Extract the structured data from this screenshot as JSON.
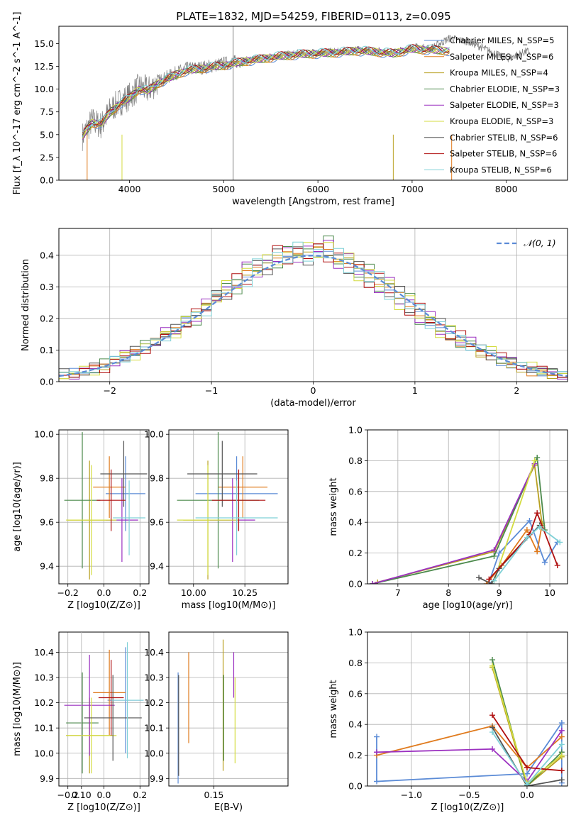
{
  "figure": {
    "title": "PLATE=1832, MJD=54259, FIBERID=0113, z=0.095"
  },
  "legend": {
    "labels": [
      "Chabrier MILES, N_SSP=5",
      "Salpeter MILES, N_SSP=6",
      "Kroupa MILES, N_SSP=4",
      "Chabrier ELODIE, N_SSP=3",
      "Salpeter ELODIE, N_SSP=3",
      "Kroupa ELODIE, N_SSP=3",
      "Chabrier STELIB, N_SSP=6",
      "Salpeter STELIB, N_SSP=6",
      "Kroupa STELIB, N_SSP=6"
    ],
    "colors": [
      "#5b8bd6",
      "#e07b1e",
      "#b8a020",
      "#4c8a4c",
      "#9b30c0",
      "#d4dc40",
      "#555555",
      "#b01010",
      "#7fd0d6"
    ],
    "placement": "upper-right"
  },
  "chart_data": [
    {
      "type": "line",
      "xlabel": "wavelength [Angstrom, rest frame]",
      "ylabel": "Flux [f_λ 10^-17 erg cm^-2 s^-1 A^-1]",
      "xlim": [
        3250,
        8650
      ],
      "ylim": [
        0,
        16.9
      ],
      "xticks": [
        "4000",
        "5000",
        "6000",
        "7000",
        "8000"
      ],
      "yticks": [
        "0.0",
        "2.5",
        "5.0",
        "7.5",
        "10.0",
        "12.5",
        "15.0"
      ],
      "grid": false,
      "series": [
        {
          "name": "data",
          "color": "#808080",
          "x": [
            3500,
            3600,
            3700,
            3800,
            3900,
            4000,
            4100,
            4200,
            4300,
            4400,
            4500,
            4600,
            4800,
            5000,
            5200,
            5400,
            5600,
            5800,
            6000,
            6200,
            6400,
            6600,
            6800,
            7000,
            7200,
            7400,
            7600,
            7800,
            8000,
            8200
          ],
          "y": [
            4.8,
            6.5,
            6.0,
            7.8,
            8.6,
            9.2,
            10.2,
            9.9,
            10.8,
            11.3,
            11.8,
            12.2,
            12.4,
            12.8,
            13.1,
            13.4,
            13.7,
            13.9,
            14.0,
            14.1,
            14.3,
            14.2,
            14.0,
            14.6,
            14.5,
            15.6,
            15.2,
            14.3,
            13.3,
            14.1
          ]
        },
        {
          "name": "model",
          "color": "#7fd0d6",
          "x": [
            3500,
            3600,
            3700,
            3800,
            3900,
            4000,
            4100,
            4200,
            4300,
            4400,
            4500,
            4600,
            4800,
            5000,
            5200,
            5400,
            5600,
            5800,
            6000,
            6200,
            6400,
            6600,
            6800,
            7000,
            7200,
            7400
          ],
          "y": [
            4.8,
            6.3,
            6.2,
            7.5,
            8.4,
            9.0,
            10.0,
            9.8,
            10.6,
            11.1,
            11.6,
            12.0,
            12.3,
            12.6,
            13.0,
            13.3,
            13.6,
            13.8,
            13.9,
            14.0,
            14.2,
            14.1,
            13.9,
            14.4,
            14.3,
            14.2
          ]
        }
      ]
    },
    {
      "type": "step",
      "xlabel": "(data-model)/error",
      "ylabel": "Normed distribution",
      "xlim": [
        -2.5,
        2.5
      ],
      "ylim": [
        0,
        0.485
      ],
      "xticks": [
        "−2",
        "−1",
        "0",
        "1",
        "2"
      ],
      "yticks": [
        "0.0",
        "0.1",
        "0.2",
        "0.3",
        "0.4"
      ],
      "grid": true,
      "legend": "𝒩(0, 1)",
      "bins": [
        -2.5,
        -2.4,
        -2.3,
        -2.2,
        -2.1,
        -2.0,
        -1.9,
        -1.8,
        -1.7,
        -1.6,
        -1.5,
        -1.4,
        -1.3,
        -1.2,
        -1.1,
        -1.0,
        -0.9,
        -0.8,
        -0.7,
        -0.6,
        -0.5,
        -0.4,
        -0.3,
        -0.2,
        -0.1,
        0.0,
        0.1,
        0.2,
        0.3,
        0.4,
        0.5,
        0.6,
        0.7,
        0.8,
        0.9,
        1.0,
        1.1,
        1.2,
        1.3,
        1.4,
        1.5,
        1.6,
        1.7,
        1.8,
        1.9,
        2.0,
        2.1,
        2.2,
        2.3,
        2.4,
        2.5
      ],
      "histograms": [
        [
          0.02,
          0.03,
          0.03,
          0.04,
          0.05,
          0.07,
          0.08,
          0.09,
          0.11,
          0.13,
          0.15,
          0.16,
          0.19,
          0.21,
          0.24,
          0.27,
          0.29,
          0.31,
          0.34,
          0.36,
          0.37,
          0.39,
          0.4,
          0.41,
          0.4,
          0.42,
          0.41,
          0.39,
          0.38,
          0.36,
          0.34,
          0.32,
          0.3,
          0.27,
          0.24,
          0.22,
          0.19,
          0.17,
          0.14,
          0.12,
          0.11,
          0.09,
          0.08,
          0.06,
          0.05,
          0.04,
          0.03,
          0.03,
          0.02,
          0.02
        ],
        [
          0.02,
          0.02,
          0.04,
          0.03,
          0.06,
          0.06,
          0.09,
          0.08,
          0.12,
          0.12,
          0.16,
          0.15,
          0.2,
          0.19,
          0.25,
          0.26,
          0.31,
          0.29,
          0.37,
          0.34,
          0.39,
          0.37,
          0.42,
          0.39,
          0.43,
          0.4,
          0.45,
          0.37,
          0.4,
          0.33,
          0.36,
          0.29,
          0.32,
          0.24,
          0.27,
          0.19,
          0.21,
          0.15,
          0.17,
          0.12,
          0.13,
          0.09,
          0.1,
          0.07,
          0.07,
          0.05,
          0.05,
          0.03,
          0.03,
          0.02
        ],
        [
          0.03,
          0.02,
          0.03,
          0.05,
          0.04,
          0.07,
          0.07,
          0.1,
          0.1,
          0.13,
          0.14,
          0.17,
          0.18,
          0.22,
          0.22,
          0.28,
          0.27,
          0.33,
          0.31,
          0.38,
          0.35,
          0.42,
          0.38,
          0.43,
          0.38,
          0.43,
          0.39,
          0.41,
          0.35,
          0.37,
          0.31,
          0.34,
          0.27,
          0.29,
          0.22,
          0.24,
          0.18,
          0.19,
          0.14,
          0.15,
          0.11,
          0.11,
          0.08,
          0.08,
          0.06,
          0.05,
          0.04,
          0.04,
          0.03,
          0.02
        ]
      ],
      "curve": {
        "name": "𝒩(0, 1)",
        "color": "#5b8bd6",
        "style": "dashed",
        "mu": 0,
        "sigma": 1
      }
    },
    {
      "type": "scatter",
      "id": "age-Z",
      "xlabel": "Z [log10(Z/Z⊙)]",
      "ylabel": "age  [log10(age/yr)]",
      "xlim": [
        -0.25,
        0.25
      ],
      "ylim": [
        9.32,
        10.02
      ],
      "xticks": [
        "−0.2",
        "0.0",
        "0.2"
      ],
      "yticks": [
        "9.4",
        "9.6",
        "9.8",
        "10.0"
      ],
      "grid": true,
      "points": [
        {
          "x": 0.12,
          "y": 9.73,
          "xerr": 0.11,
          "yerr": 0.17
        },
        {
          "x": 0.03,
          "y": 9.76,
          "xerr": 0.09,
          "yerr": 0.14
        },
        {
          "x": -0.08,
          "y": 9.61,
          "xerr": 0.12,
          "yerr": 0.27
        },
        {
          "x": -0.12,
          "y": 9.7,
          "xerr": 0.1,
          "yerr": 0.31
        },
        {
          "x": 0.1,
          "y": 9.61,
          "xerr": 0.09,
          "yerr": 0.19
        },
        {
          "x": -0.07,
          "y": 9.61,
          "xerr": 0.14,
          "yerr": 0.25
        },
        {
          "x": 0.11,
          "y": 9.82,
          "xerr": 0.13,
          "yerr": 0.15
        },
        {
          "x": 0.04,
          "y": 9.7,
          "xerr": 0.08,
          "yerr": 0.14
        },
        {
          "x": 0.14,
          "y": 9.62,
          "xerr": 0.09,
          "yerr": 0.17
        }
      ]
    },
    {
      "type": "scatter",
      "id": "age-mass",
      "xlabel": "mass [log10(M/M⊙)]",
      "xlim": [
        9.88,
        10.46
      ],
      "ylim": [
        9.32,
        10.02
      ],
      "xticks": [
        "10.00",
        "10.25"
      ],
      "yticks": [
        "9.4",
        "9.6",
        "9.8",
        "10.0"
      ],
      "grid": true,
      "points": [
        {
          "x": 10.21,
          "y": 9.73,
          "xerr": 0.2,
          "yerr": 0.17
        },
        {
          "x": 10.24,
          "y": 9.76,
          "xerr": 0.12,
          "yerr": 0.14
        },
        {
          "x": 10.07,
          "y": 9.61,
          "xerr": 0.12,
          "yerr": 0.27
        },
        {
          "x": 10.12,
          "y": 9.7,
          "xerr": 0.2,
          "yerr": 0.31
        },
        {
          "x": 10.19,
          "y": 9.61,
          "xerr": 0.11,
          "yerr": 0.19
        },
        {
          "x": 10.07,
          "y": 9.61,
          "xerr": 0.15,
          "yerr": 0.25
        },
        {
          "x": 10.14,
          "y": 9.82,
          "xerr": 0.17,
          "yerr": 0.15
        },
        {
          "x": 10.22,
          "y": 9.7,
          "xerr": 0.13,
          "yerr": 0.14
        },
        {
          "x": 10.21,
          "y": 9.62,
          "xerr": 0.2,
          "yerr": 0.17
        }
      ]
    },
    {
      "type": "line",
      "id": "weight-age",
      "xlabel": "age  [log10(age/yr)]",
      "ylabel": "mass weight",
      "xlim": [
        6.4,
        10.35
      ],
      "ylim": [
        0,
        1.0
      ],
      "xticks": [
        "7",
        "8",
        "9",
        "10"
      ],
      "yticks": [
        "0.0",
        "0.2",
        "0.4",
        "0.6",
        "0.8",
        "1.0"
      ],
      "grid": true,
      "series": [
        {
          "x": [
            8.8,
            9.0,
            9.6,
            9.9,
            10.15
          ],
          "y": [
            0.01,
            0.2,
            0.41,
            0.14,
            0.27
          ]
        },
        {
          "x": [
            8.75,
            9.05,
            9.55,
            9.75,
            9.85
          ],
          "y": [
            0.0,
            0.12,
            0.35,
            0.21,
            0.39
          ]
        },
        {
          "x": [
            6.6,
            8.9,
            9.7,
            9.85
          ],
          "y": [
            0.01,
            0.21,
            0.77,
            0.38
          ]
        },
        {
          "x": [
            6.5,
            8.9,
            9.75,
            9.9
          ],
          "y": [
            0.0,
            0.18,
            0.82,
            0.35
          ]
        },
        {
          "x": [
            6.5,
            8.9,
            9.7
          ],
          "y": [
            0.0,
            0.22,
            0.78
          ]
        },
        {
          "x": [
            8.9,
            9.7
          ],
          "y": [
            0.02,
            0.8
          ]
        },
        {
          "x": [
            8.6,
            8.85,
            9.0,
            9.8
          ],
          "y": [
            0.04,
            0.0,
            0.1,
            0.38
          ]
        },
        {
          "x": [
            8.8,
            9.6,
            9.75,
            10.15
          ],
          "y": [
            0.03,
            0.32,
            0.46,
            0.12
          ]
        },
        {
          "x": [
            8.9,
            9.55,
            9.8,
            10.2
          ],
          "y": [
            0.02,
            0.3,
            0.37,
            0.27
          ]
        }
      ]
    },
    {
      "type": "scatter",
      "id": "mass-Z",
      "xlabel": "Z [log10(Z/Z⊙)]",
      "ylabel": "mass [log10(M/M⊙)]",
      "xlim": [
        -0.25,
        0.25
      ],
      "ylim": [
        9.87,
        10.48
      ],
      "xticks": [
        "−0.2",
        "0.0",
        "0.2"
      ],
      "yticks": [
        "9.9",
        "10.0",
        "10.1",
        "10.2",
        "10.3",
        "10.4"
      ],
      "grid": true,
      "points": [
        {
          "x": 0.12,
          "y": 10.21,
          "xerr": 0.1,
          "yerr": 0.21
        },
        {
          "x": 0.03,
          "y": 10.24,
          "xerr": 0.09,
          "yerr": 0.17
        },
        {
          "x": -0.08,
          "y": 10.07,
          "xerr": 0.13,
          "yerr": 0.15
        },
        {
          "x": -0.12,
          "y": 10.12,
          "xerr": 0.09,
          "yerr": 0.2
        },
        {
          "x": -0.08,
          "y": 10.19,
          "xerr": 0.14,
          "yerr": 0.2
        },
        {
          "x": -0.07,
          "y": 10.07,
          "xerr": 0.14,
          "yerr": 0.15
        },
        {
          "x": 0.05,
          "y": 10.14,
          "xerr": 0.16,
          "yerr": 0.17
        },
        {
          "x": 0.04,
          "y": 10.22,
          "xerr": 0.07,
          "yerr": 0.15
        },
        {
          "x": 0.13,
          "y": 10.21,
          "xerr": 0.09,
          "yerr": 0.23
        }
      ]
    },
    {
      "type": "scatter",
      "id": "mass-ebv",
      "xlabel": "E(B-V)",
      "xlim": [
        0.133,
        0.178
      ],
      "ylim": [
        9.87,
        10.48
      ],
      "xticks": [
        "0.10",
        "0.15"
      ],
      "yticks": [
        "9.9",
        "10.0",
        "10.1",
        "10.2",
        "10.3",
        "10.4"
      ],
      "grid": true,
      "points": [
        {
          "x": 0.1365,
          "y": 10.1,
          "yerr": 0.22
        },
        {
          "x": 0.1405,
          "y": 10.22,
          "yerr": 0.18
        },
        {
          "x": 0.1535,
          "y": 10.19,
          "yerr": 0.26
        },
        {
          "x": 0.1537,
          "y": 10.14,
          "yerr": 0.17
        },
        {
          "x": 0.1575,
          "y": 10.31,
          "yerr": 0.09
        },
        {
          "x": 0.158,
          "y": 10.13,
          "yerr": 0.17
        },
        {
          "x": 0.1367,
          "y": 10.11,
          "yerr": 0.2
        }
      ]
    },
    {
      "type": "line",
      "id": "weight-Z",
      "xlabel": "Z [log10(Z/Z⊙)]",
      "ylabel": "mass weight",
      "xlim": [
        -1.38,
        0.35
      ],
      "ylim": [
        0,
        1.0
      ],
      "xticks": [
        "−1.0",
        "−0.5",
        "0.0"
      ],
      "yticks": [
        "0.0",
        "0.2",
        "0.4",
        "0.6",
        "0.8",
        "1.0"
      ],
      "grid": true,
      "series": [
        {
          "x": [
            -1.3,
            -1.3,
            0.0,
            0.3,
            0.3
          ],
          "y": [
            0.32,
            0.03,
            0.08,
            0.41,
            0.02
          ]
        },
        {
          "x": [
            -1.3,
            -0.3,
            0.0,
            0.3
          ],
          "y": [
            0.2,
            0.39,
            0.12,
            0.32
          ]
        },
        {
          "x": [
            -0.3,
            0.0,
            0.3
          ],
          "y": [
            0.77,
            0.0,
            0.19
          ]
        },
        {
          "x": [
            -0.3,
            0.0,
            0.3
          ],
          "y": [
            0.82,
            0.0,
            0.22
          ]
        },
        {
          "x": [
            -1.3,
            -0.3,
            0.0,
            0.3
          ],
          "y": [
            0.22,
            0.24,
            0.03,
            0.36
          ]
        },
        {
          "x": [
            -0.3,
            0.0,
            0.3
          ],
          "y": [
            0.78,
            0.02,
            0.2
          ]
        },
        {
          "x": [
            -0.3,
            0.0,
            0.3
          ],
          "y": [
            0.38,
            0.0,
            0.04
          ]
        },
        {
          "x": [
            -0.3,
            0.0,
            0.3
          ],
          "y": [
            0.46,
            0.12,
            0.1
          ]
        },
        {
          "x": [
            -0.3,
            0.0,
            0.3
          ],
          "y": [
            0.35,
            0.01,
            0.27
          ]
        }
      ]
    }
  ]
}
